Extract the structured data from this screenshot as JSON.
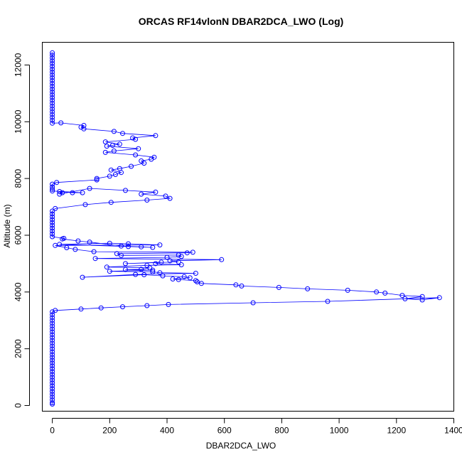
{
  "chart_data": {
    "type": "scatter",
    "title": "ORCAS RF14vlonN DBAR2DCA_LWO (Log)",
    "xlabel": "DBAR2DCA_LWO",
    "ylabel": "Altitude (m)",
    "xlim": [
      -35,
      1400
    ],
    "ylim": [
      -200,
      12800
    ],
    "x_ticks": [
      0,
      200,
      400,
      600,
      800,
      1000,
      1200,
      1400
    ],
    "y_ticks": [
      0,
      2000,
      4000,
      6000,
      8000,
      10000,
      12000
    ],
    "series_color": "#0000ff",
    "grid": false,
    "marker": "open-circle",
    "connect_points": true,
    "points": [
      [
        0,
        50
      ],
      [
        0,
        100
      ],
      [
        0,
        200
      ],
      [
        0,
        300
      ],
      [
        0,
        400
      ],
      [
        0,
        500
      ],
      [
        0,
        600
      ],
      [
        0,
        700
      ],
      [
        0,
        800
      ],
      [
        0,
        900
      ],
      [
        0,
        1000
      ],
      [
        0,
        1100
      ],
      [
        0,
        1200
      ],
      [
        0,
        1300
      ],
      [
        0,
        1400
      ],
      [
        0,
        1500
      ],
      [
        0,
        1600
      ],
      [
        0,
        1700
      ],
      [
        0,
        1800
      ],
      [
        0,
        1900
      ],
      [
        0,
        2000
      ],
      [
        0,
        2100
      ],
      [
        0,
        2200
      ],
      [
        0,
        2300
      ],
      [
        0,
        2400
      ],
      [
        0,
        2500
      ],
      [
        0,
        2600
      ],
      [
        0,
        2700
      ],
      [
        0,
        2800
      ],
      [
        0,
        2900
      ],
      [
        0,
        3000
      ],
      [
        0,
        3100
      ],
      [
        0,
        3200
      ],
      [
        0,
        3300
      ],
      [
        10,
        3350
      ],
      [
        100,
        3400
      ],
      [
        170,
        3440
      ],
      [
        245,
        3480
      ],
      [
        330,
        3520
      ],
      [
        405,
        3560
      ],
      [
        700,
        3620
      ],
      [
        960,
        3670
      ],
      [
        1350,
        3800
      ],
      [
        1290,
        3720
      ],
      [
        1230,
        3760
      ],
      [
        1290,
        3840
      ],
      [
        1220,
        3880
      ],
      [
        1160,
        3960
      ],
      [
        1130,
        4000
      ],
      [
        1030,
        4060
      ],
      [
        890,
        4110
      ],
      [
        790,
        4160
      ],
      [
        660,
        4210
      ],
      [
        640,
        4250
      ],
      [
        520,
        4300
      ],
      [
        505,
        4360
      ],
      [
        500,
        4400
      ],
      [
        440,
        4440
      ],
      [
        420,
        4460
      ],
      [
        480,
        4500
      ],
      [
        460,
        4540
      ],
      [
        385,
        4570
      ],
      [
        320,
        4610
      ],
      [
        105,
        4520
      ],
      [
        290,
        4620
      ],
      [
        500,
        4660
      ],
      [
        375,
        4680
      ],
      [
        350,
        4710
      ],
      [
        200,
        4730
      ],
      [
        350,
        4770
      ],
      [
        255,
        4790
      ],
      [
        310,
        4800
      ],
      [
        340,
        4850
      ],
      [
        190,
        4880
      ],
      [
        330,
        4940
      ],
      [
        450,
        4960
      ],
      [
        360,
        5000
      ],
      [
        380,
        5050
      ],
      [
        255,
        5000
      ],
      [
        440,
        5060
      ],
      [
        410,
        5100
      ],
      [
        590,
        5140
      ],
      [
        150,
        5180
      ],
      [
        400,
        5220
      ],
      [
        450,
        5250
      ],
      [
        440,
        5300
      ],
      [
        240,
        5290
      ],
      [
        225,
        5350
      ],
      [
        470,
        5380
      ],
      [
        490,
        5400
      ],
      [
        145,
        5420
      ],
      [
        80,
        5500
      ],
      [
        50,
        5560
      ],
      [
        10,
        5640
      ],
      [
        375,
        5660
      ],
      [
        265,
        5700
      ],
      [
        200,
        5720
      ],
      [
        25,
        5680
      ],
      [
        265,
        5600
      ],
      [
        350,
        5570
      ],
      [
        310,
        5590
      ],
      [
        240,
        5620
      ],
      [
        130,
        5760
      ],
      [
        90,
        5800
      ],
      [
        35,
        5870
      ],
      [
        40,
        5890
      ],
      [
        0,
        5950
      ],
      [
        0,
        6050
      ],
      [
        0,
        6150
      ],
      [
        0,
        6250
      ],
      [
        0,
        6350
      ],
      [
        0,
        6450
      ],
      [
        0,
        6550
      ],
      [
        0,
        6650
      ],
      [
        0,
        6750
      ],
      [
        0,
        6850
      ],
      [
        10,
        6940
      ],
      [
        115,
        7080
      ],
      [
        205,
        7160
      ],
      [
        330,
        7240
      ],
      [
        410,
        7300
      ],
      [
        395,
        7380
      ],
      [
        310,
        7450
      ],
      [
        360,
        7520
      ],
      [
        255,
        7580
      ],
      [
        130,
        7650
      ],
      [
        25,
        7450
      ],
      [
        35,
        7500
      ],
      [
        25,
        7540
      ],
      [
        70,
        7500
      ],
      [
        105,
        7500
      ],
      [
        0,
        7560
      ],
      [
        0,
        7620
      ],
      [
        0,
        7700
      ],
      [
        0,
        7800
      ],
      [
        15,
        7860
      ],
      [
        155,
        7950
      ],
      [
        155,
        8000
      ],
      [
        200,
        8080
      ],
      [
        220,
        8140
      ],
      [
        240,
        8210
      ],
      [
        205,
        8300
      ],
      [
        235,
        8350
      ],
      [
        275,
        8430
      ],
      [
        320,
        8540
      ],
      [
        310,
        8620
      ],
      [
        345,
        8680
      ],
      [
        355,
        8750
      ],
      [
        290,
        8830
      ],
      [
        185,
        8920
      ],
      [
        215,
        8970
      ],
      [
        300,
        9050
      ],
      [
        190,
        9140
      ],
      [
        210,
        9170
      ],
      [
        235,
        9210
      ],
      [
        185,
        9290
      ],
      [
        290,
        9380
      ],
      [
        280,
        9430
      ],
      [
        360,
        9510
      ],
      [
        245,
        9590
      ],
      [
        215,
        9660
      ],
      [
        110,
        9750
      ],
      [
        100,
        9810
      ],
      [
        110,
        9870
      ],
      [
        30,
        9960
      ],
      [
        0,
        9950
      ],
      [
        0,
        10050
      ],
      [
        0,
        10150
      ],
      [
        0,
        10250
      ],
      [
        0,
        10350
      ],
      [
        0,
        10450
      ],
      [
        0,
        10550
      ],
      [
        0,
        10650
      ],
      [
        0,
        10750
      ],
      [
        0,
        10850
      ],
      [
        0,
        10950
      ],
      [
        0,
        11050
      ],
      [
        0,
        11150
      ],
      [
        0,
        11250
      ],
      [
        0,
        11350
      ],
      [
        0,
        11450
      ],
      [
        0,
        11550
      ],
      [
        0,
        11650
      ],
      [
        0,
        11750
      ],
      [
        0,
        11850
      ],
      [
        0,
        11950
      ],
      [
        0,
        12050
      ],
      [
        0,
        12150
      ],
      [
        0,
        12250
      ],
      [
        0,
        12350
      ],
      [
        0,
        12430
      ]
    ]
  }
}
